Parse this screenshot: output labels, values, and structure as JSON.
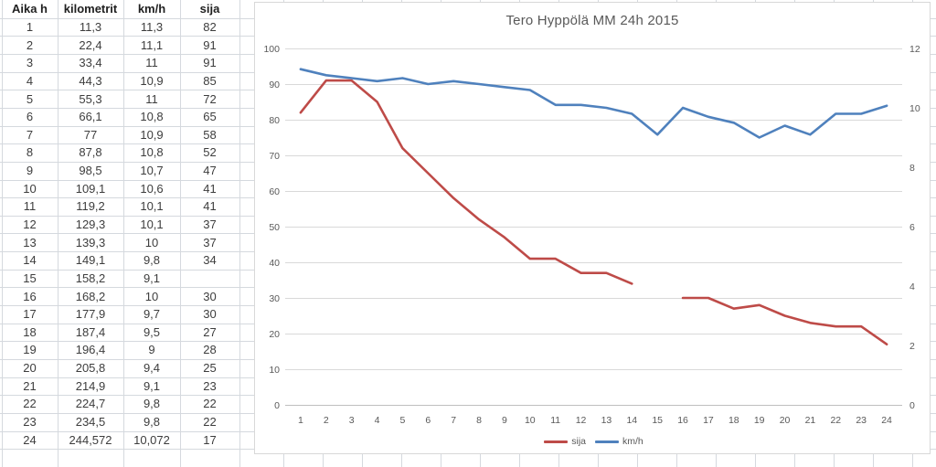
{
  "sheet": {
    "table": {
      "headers": [
        "Aika h",
        "kilometrit",
        "km/h",
        "sija"
      ],
      "rows": [
        [
          "1",
          "11,3",
          "11,3",
          "82"
        ],
        [
          "2",
          "22,4",
          "11,1",
          "91"
        ],
        [
          "3",
          "33,4",
          "11",
          "91"
        ],
        [
          "4",
          "44,3",
          "10,9",
          "85"
        ],
        [
          "5",
          "55,3",
          "11",
          "72"
        ],
        [
          "6",
          "66,1",
          "10,8",
          "65"
        ],
        [
          "7",
          "77",
          "10,9",
          "58"
        ],
        [
          "8",
          "87,8",
          "10,8",
          "52"
        ],
        [
          "9",
          "98,5",
          "10,7",
          "47"
        ],
        [
          "10",
          "109,1",
          "10,6",
          "41"
        ],
        [
          "11",
          "119,2",
          "10,1",
          "41"
        ],
        [
          "12",
          "129,3",
          "10,1",
          "37"
        ],
        [
          "13",
          "139,3",
          "10",
          "37"
        ],
        [
          "14",
          "149,1",
          "9,8",
          "34"
        ],
        [
          "15",
          "158,2",
          "9,1",
          ""
        ],
        [
          "16",
          "168,2",
          "10",
          "30"
        ],
        [
          "17",
          "177,9",
          "9,7",
          "30"
        ],
        [
          "18",
          "187,4",
          "9,5",
          "27"
        ],
        [
          "19",
          "196,4",
          "9",
          "28"
        ],
        [
          "20",
          "205,8",
          "9,4",
          "25"
        ],
        [
          "21",
          "214,9",
          "9,1",
          "23"
        ],
        [
          "22",
          "224,7",
          "9,8",
          "22"
        ],
        [
          "23",
          "234,5",
          "9,8",
          "22"
        ],
        [
          "24",
          "244,572",
          "10,072",
          "17"
        ]
      ]
    }
  },
  "chart_data": {
    "type": "line",
    "title": "Tero Hyppölä MM 24h 2015",
    "x": [
      1,
      2,
      3,
      4,
      5,
      6,
      7,
      8,
      9,
      10,
      11,
      12,
      13,
      14,
      15,
      16,
      17,
      18,
      19,
      20,
      21,
      22,
      23,
      24
    ],
    "x_tick_labels": [
      "1",
      "2",
      "3",
      "4",
      "5",
      "6",
      "7",
      "8",
      "9",
      "10",
      "11",
      "12",
      "13",
      "14",
      "15",
      "16",
      "17",
      "18",
      "19",
      "20",
      "21",
      "22",
      "23",
      "24"
    ],
    "series": [
      {
        "name": "sija",
        "axis": "left",
        "color": "#be4b48",
        "values": [
          82,
          91,
          91,
          85,
          72,
          65,
          58,
          52,
          47,
          41,
          41,
          37,
          37,
          34,
          null,
          30,
          30,
          27,
          28,
          25,
          23,
          22,
          22,
          17
        ]
      },
      {
        "name": "km/h",
        "axis": "right",
        "color": "#4f81bd",
        "values": [
          11.3,
          11.1,
          11,
          10.9,
          11,
          10.8,
          10.9,
          10.8,
          10.7,
          10.6,
          10.1,
          10.1,
          10,
          9.8,
          9.1,
          10,
          9.7,
          9.5,
          9,
          9.4,
          9.1,
          9.8,
          9.8,
          10.072
        ]
      }
    ],
    "left_axis": {
      "min": 0,
      "max": 100,
      "step": 10,
      "ticks": [
        "0",
        "10",
        "20",
        "30",
        "40",
        "50",
        "60",
        "70",
        "80",
        "90",
        "100"
      ]
    },
    "right_axis": {
      "min": 0,
      "max": 12,
      "step": 2,
      "ticks": [
        "0",
        "2",
        "4",
        "6",
        "8",
        "10",
        "12"
      ]
    },
    "grid": true,
    "legend_position": "bottom",
    "colors": {
      "title_text": "#595959",
      "axis_text": "#595959",
      "gridline": "#d9d9d9",
      "axis_line": "#bfbfbf"
    }
  }
}
